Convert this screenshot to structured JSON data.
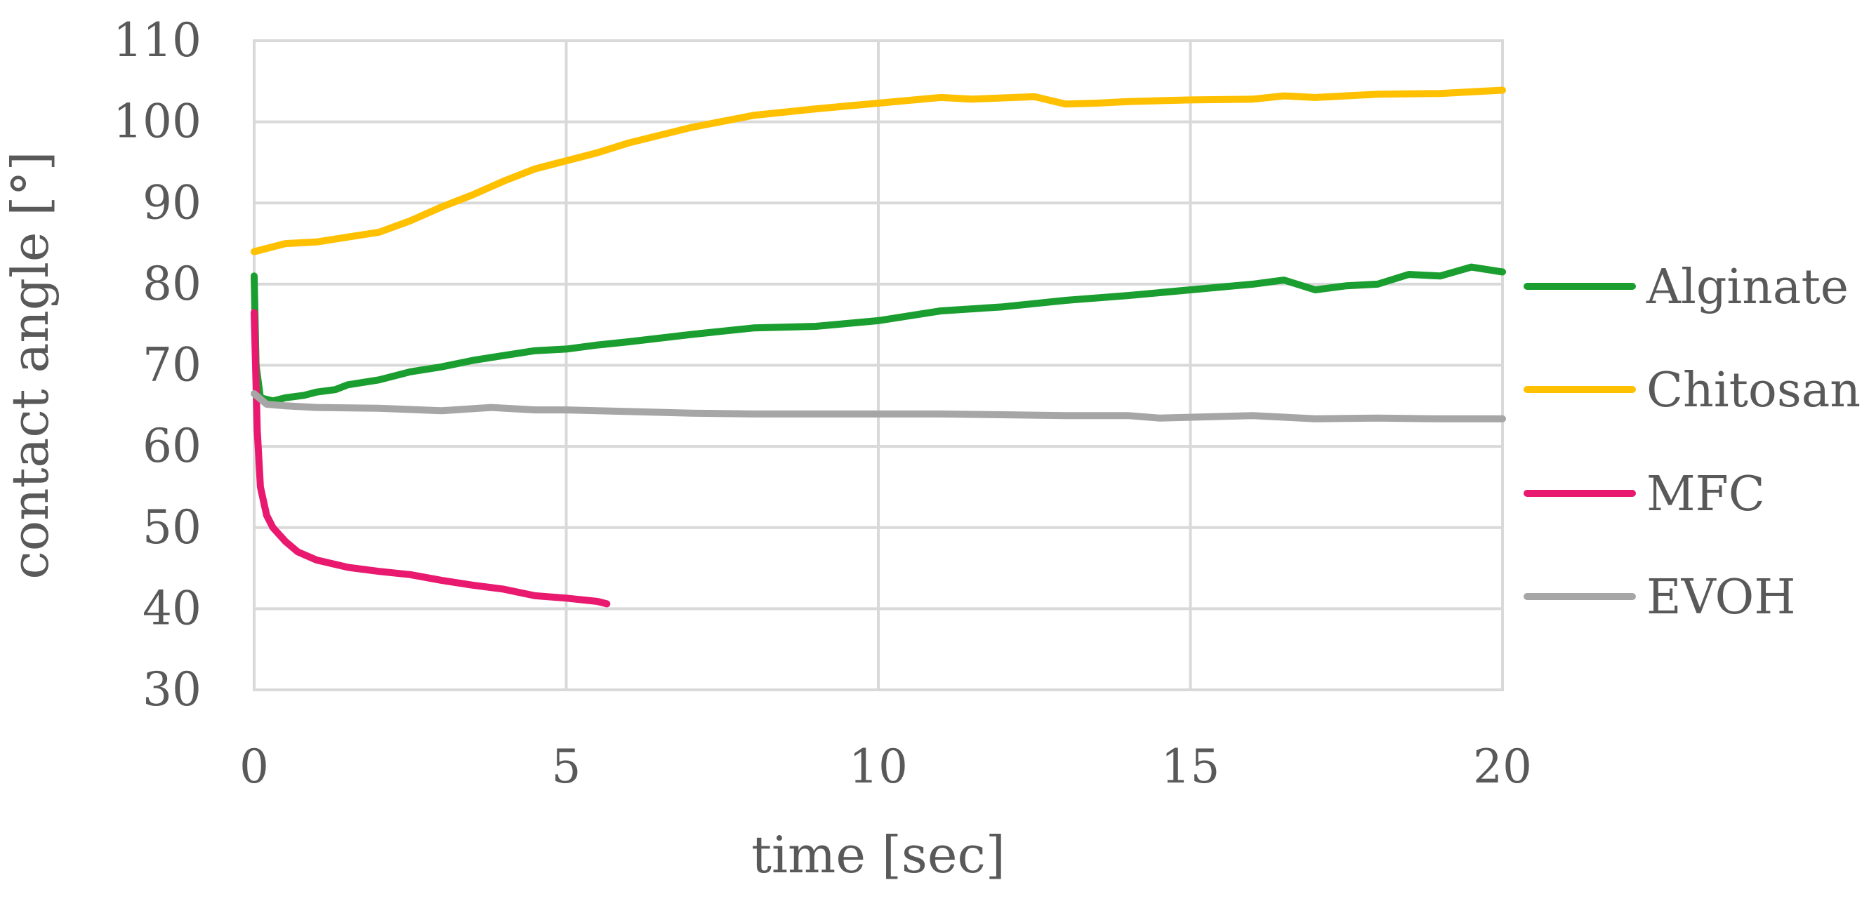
{
  "chart_data": {
    "type": "line",
    "title": "",
    "xlabel": "time [sec]",
    "ylabel": "contact angle [°]",
    "xlim": [
      0,
      20
    ],
    "ylim": [
      30,
      110
    ],
    "xticks": [
      0,
      5,
      10,
      15,
      20
    ],
    "yticks": [
      30,
      40,
      50,
      60,
      70,
      80,
      90,
      100,
      110
    ],
    "grid": true,
    "legend_position": "right",
    "series": [
      {
        "name": "Alginate",
        "color": "#1a9e2f",
        "points": [
          [
            0.0,
            81.0
          ],
          [
            0.03,
            70.0
          ],
          [
            0.1,
            66.0
          ],
          [
            0.3,
            65.6
          ],
          [
            0.5,
            66.0
          ],
          [
            0.8,
            66.3
          ],
          [
            1.0,
            66.7
          ],
          [
            1.3,
            67.0
          ],
          [
            1.5,
            67.6
          ],
          [
            2.0,
            68.2
          ],
          [
            2.5,
            69.2
          ],
          [
            3.0,
            69.8
          ],
          [
            3.5,
            70.6
          ],
          [
            4.0,
            71.2
          ],
          [
            4.5,
            71.8
          ],
          [
            5.0,
            72.0
          ],
          [
            5.5,
            72.5
          ],
          [
            6.0,
            72.9
          ],
          [
            7.0,
            73.8
          ],
          [
            8.0,
            74.6
          ],
          [
            9.0,
            74.8
          ],
          [
            10.0,
            75.5
          ],
          [
            11.0,
            76.7
          ],
          [
            12.0,
            77.2
          ],
          [
            13.0,
            78.0
          ],
          [
            14.0,
            78.6
          ],
          [
            15.0,
            79.3
          ],
          [
            16.0,
            80.0
          ],
          [
            16.5,
            80.5
          ],
          [
            17.0,
            79.3
          ],
          [
            17.5,
            79.8
          ],
          [
            18.0,
            80.0
          ],
          [
            18.5,
            81.2
          ],
          [
            19.0,
            81.0
          ],
          [
            19.5,
            82.1
          ],
          [
            20.0,
            81.5
          ]
        ]
      },
      {
        "name": "Chitosan",
        "color": "#ffc000",
        "points": [
          [
            0.0,
            84.0
          ],
          [
            0.5,
            85.0
          ],
          [
            1.0,
            85.2
          ],
          [
            1.5,
            85.8
          ],
          [
            2.0,
            86.4
          ],
          [
            2.5,
            87.8
          ],
          [
            3.0,
            89.5
          ],
          [
            3.5,
            91.0
          ],
          [
            4.0,
            92.7
          ],
          [
            4.5,
            94.2
          ],
          [
            5.0,
            95.2
          ],
          [
            5.5,
            96.2
          ],
          [
            6.0,
            97.4
          ],
          [
            7.0,
            99.3
          ],
          [
            8.0,
            100.8
          ],
          [
            9.0,
            101.6
          ],
          [
            10.0,
            102.3
          ],
          [
            11.0,
            103.0
          ],
          [
            11.5,
            102.8
          ],
          [
            12.5,
            103.1
          ],
          [
            13.0,
            102.2
          ],
          [
            13.5,
            102.3
          ],
          [
            14.0,
            102.5
          ],
          [
            15.0,
            102.7
          ],
          [
            16.0,
            102.8
          ],
          [
            16.5,
            103.2
          ],
          [
            17.0,
            103.0
          ],
          [
            18.0,
            103.4
          ],
          [
            19.0,
            103.5
          ],
          [
            20.0,
            103.9
          ]
        ]
      },
      {
        "name": "MFC",
        "color": "#e8196e",
        "points": [
          [
            0.0,
            76.5
          ],
          [
            0.05,
            62.0
          ],
          [
            0.1,
            55.0
          ],
          [
            0.2,
            51.5
          ],
          [
            0.3,
            50.0
          ],
          [
            0.5,
            48.3
          ],
          [
            0.7,
            47.0
          ],
          [
            1.0,
            46.0
          ],
          [
            1.5,
            45.1
          ],
          [
            2.0,
            44.6
          ],
          [
            2.5,
            44.2
          ],
          [
            3.0,
            43.5
          ],
          [
            3.5,
            42.9
          ],
          [
            4.0,
            42.4
          ],
          [
            4.5,
            41.6
          ],
          [
            5.0,
            41.3
          ],
          [
            5.5,
            40.9
          ],
          [
            5.65,
            40.6
          ]
        ]
      },
      {
        "name": "EVOH",
        "color": "#a6a6a6",
        "points": [
          [
            0.0,
            66.5
          ],
          [
            0.2,
            65.2
          ],
          [
            0.5,
            65.0
          ],
          [
            1.0,
            64.8
          ],
          [
            2.0,
            64.7
          ],
          [
            3.0,
            64.4
          ],
          [
            3.8,
            64.8
          ],
          [
            4.5,
            64.5
          ],
          [
            5.0,
            64.5
          ],
          [
            6.0,
            64.3
          ],
          [
            7.0,
            64.1
          ],
          [
            8.0,
            64.0
          ],
          [
            9.0,
            64.0
          ],
          [
            10.0,
            64.0
          ],
          [
            11.0,
            64.0
          ],
          [
            12.0,
            63.9
          ],
          [
            13.0,
            63.8
          ],
          [
            14.0,
            63.8
          ],
          [
            14.5,
            63.5
          ],
          [
            16.0,
            63.8
          ],
          [
            17.0,
            63.4
          ],
          [
            18.0,
            63.5
          ],
          [
            19.0,
            63.4
          ],
          [
            20.0,
            63.4
          ]
        ]
      }
    ]
  }
}
